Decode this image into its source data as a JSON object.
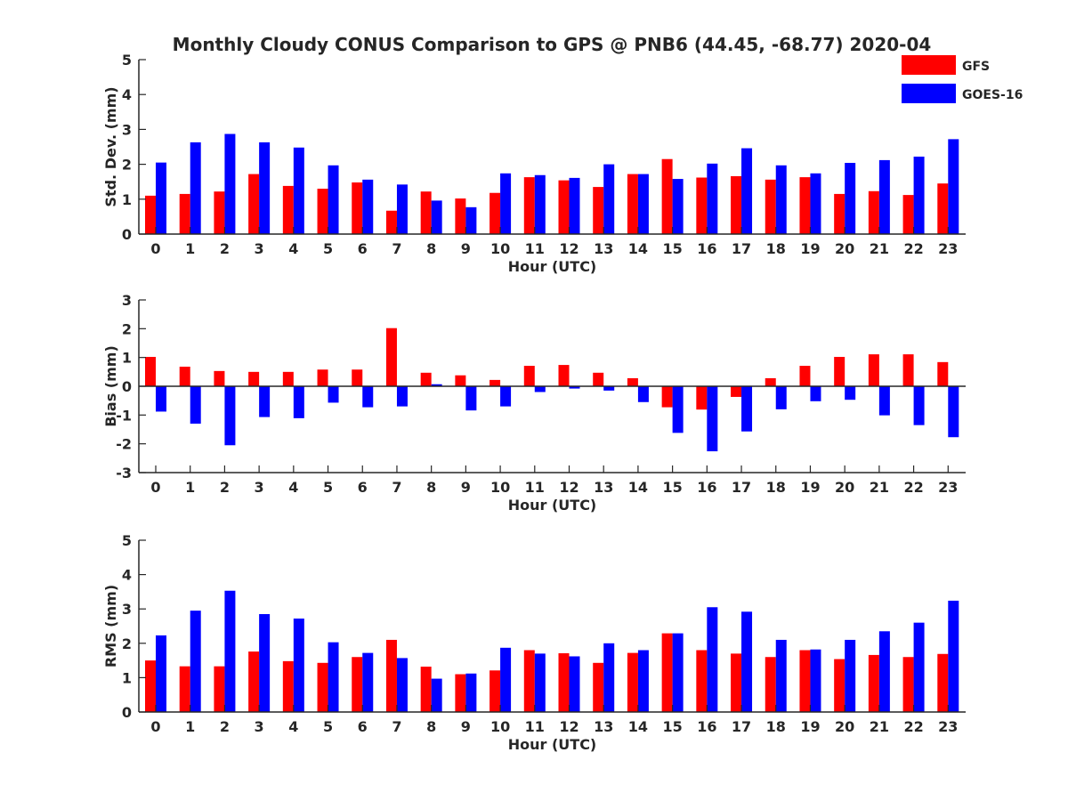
{
  "title": "Monthly Cloudy CONUS Comparison to GPS @ PNB6 (44.45, -68.77) 2020-04",
  "legend": {
    "location": "top-right",
    "items": [
      {
        "name": "GFS",
        "color": "#ff0000"
      },
      {
        "name": "GOES-16",
        "color": "#0000ff"
      }
    ]
  },
  "chart_data": [
    {
      "type": "bar",
      "xlabel": "Hour (UTC)",
      "ylabel": "Std. Dev. (mm)",
      "ylim": [
        0,
        5
      ],
      "yticks": [
        0,
        1,
        2,
        3,
        4,
        5
      ],
      "grid": false,
      "categories": [
        "0",
        "1",
        "2",
        "3",
        "4",
        "5",
        "6",
        "7",
        "8",
        "9",
        "10",
        "11",
        "12",
        "13",
        "14",
        "15",
        "16",
        "17",
        "18",
        "19",
        "20",
        "21",
        "22",
        "23"
      ],
      "series": [
        {
          "name": "GFS",
          "color": "#ff0000",
          "values": [
            1.1,
            1.15,
            1.22,
            1.72,
            1.38,
            1.3,
            1.48,
            0.67,
            1.22,
            1.02,
            1.18,
            1.63,
            1.54,
            1.35,
            1.72,
            2.15,
            1.62,
            1.66,
            1.56,
            1.63,
            1.15,
            1.23,
            1.12,
            1.45
          ]
        },
        {
          "name": "GOES-16",
          "color": "#0000ff",
          "values": [
            2.05,
            2.63,
            2.87,
            2.63,
            2.48,
            1.97,
            1.56,
            1.42,
            0.96,
            0.77,
            1.74,
            1.69,
            1.61,
            2.0,
            1.72,
            1.58,
            2.02,
            2.46,
            1.97,
            1.74,
            2.04,
            2.12,
            2.22,
            2.72
          ]
        }
      ]
    },
    {
      "type": "bar",
      "xlabel": "Hour (UTC)",
      "ylabel": "Bias (mm)",
      "ylim": [
        -3,
        3
      ],
      "yticks": [
        -3,
        -2,
        -1,
        0,
        1,
        2,
        3
      ],
      "grid": false,
      "categories": [
        "0",
        "1",
        "2",
        "3",
        "4",
        "5",
        "6",
        "7",
        "8",
        "9",
        "10",
        "11",
        "12",
        "13",
        "14",
        "15",
        "16",
        "17",
        "18",
        "19",
        "20",
        "21",
        "22",
        "23"
      ],
      "series": [
        {
          "name": "GFS",
          "color": "#ff0000",
          "values": [
            1.02,
            0.68,
            0.53,
            0.5,
            0.5,
            0.58,
            0.58,
            2.02,
            0.47,
            0.38,
            0.22,
            0.71,
            0.74,
            0.47,
            0.28,
            -0.73,
            -0.81,
            -0.37,
            0.28,
            0.71,
            1.02,
            1.11,
            1.11,
            0.84
          ]
        },
        {
          "name": "GOES-16",
          "color": "#0000ff",
          "values": [
            -0.88,
            -1.3,
            -2.05,
            -1.07,
            -1.11,
            -0.57,
            -0.73,
            -0.7,
            0.07,
            -0.84,
            -0.7,
            -0.2,
            -0.08,
            -0.15,
            -0.55,
            -1.62,
            -2.26,
            -1.57,
            -0.8,
            -0.52,
            -0.47,
            -1.01,
            -1.35,
            -1.77
          ]
        }
      ]
    },
    {
      "type": "bar",
      "xlabel": "Hour (UTC)",
      "ylabel": "RMS (mm)",
      "ylim": [
        0,
        5
      ],
      "yticks": [
        0,
        1,
        2,
        3,
        4,
        5
      ],
      "grid": false,
      "categories": [
        "0",
        "1",
        "2",
        "3",
        "4",
        "5",
        "6",
        "7",
        "8",
        "9",
        "10",
        "11",
        "12",
        "13",
        "14",
        "15",
        "16",
        "17",
        "18",
        "19",
        "20",
        "21",
        "22",
        "23"
      ],
      "series": [
        {
          "name": "GFS",
          "color": "#ff0000",
          "values": [
            1.5,
            1.33,
            1.33,
            1.76,
            1.48,
            1.43,
            1.6,
            2.1,
            1.32,
            1.1,
            1.21,
            1.8,
            1.71,
            1.43,
            1.72,
            2.29,
            1.8,
            1.7,
            1.6,
            1.8,
            1.54,
            1.66,
            1.6,
            1.69
          ]
        },
        {
          "name": "GOES-16",
          "color": "#0000ff",
          "values": [
            2.23,
            2.95,
            3.53,
            2.85,
            2.72,
            2.03,
            1.72,
            1.57,
            0.97,
            1.12,
            1.87,
            1.7,
            1.62,
            2.0,
            1.8,
            2.29,
            3.05,
            2.92,
            2.1,
            1.82,
            2.1,
            2.35,
            2.6,
            3.24
          ]
        }
      ]
    }
  ]
}
